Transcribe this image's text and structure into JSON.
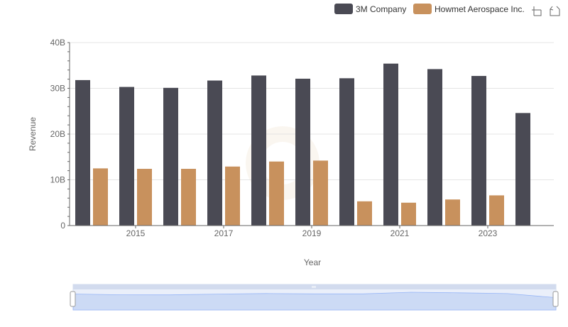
{
  "legend": {
    "items": [
      {
        "name": "3M Company",
        "color": "#4a4a54"
      },
      {
        "name": "Howmet Aerospace Inc.",
        "color": "#c8915d"
      }
    ]
  },
  "toolbar": {
    "icons": [
      "zoom-area-icon",
      "restore-icon"
    ]
  },
  "chart_data": {
    "type": "bar",
    "xlabel": "Year",
    "ylabel": "Revenue",
    "ylim": [
      0,
      40000000000
    ],
    "yticks": [
      {
        "value": 0,
        "label": "0"
      },
      {
        "value": 10000000000,
        "label": "10B"
      },
      {
        "value": 20000000000,
        "label": "20B"
      },
      {
        "value": 30000000000,
        "label": "30B"
      },
      {
        "value": 40000000000,
        "label": "40B"
      }
    ],
    "categories": [
      "2014",
      "2015",
      "2016",
      "2017",
      "2018",
      "2019",
      "2020",
      "2021",
      "2022",
      "2023",
      "2024"
    ],
    "xtick_labels": [
      "2015",
      "2017",
      "2019",
      "2021",
      "2023"
    ],
    "grid": true,
    "legend_position": "top-right",
    "series": [
      {
        "name": "3M Company",
        "color": "#4a4a54",
        "values": [
          31800000000,
          30300000000,
          30100000000,
          31700000000,
          32800000000,
          32100000000,
          32200000000,
          35400000000,
          34200000000,
          32700000000,
          24600000000
        ]
      },
      {
        "name": "Howmet Aerospace Inc.",
        "color": "#c8915d",
        "values": [
          12500000000,
          12400000000,
          12400000000,
          12900000000,
          14000000000,
          14200000000,
          5300000000,
          5000000000,
          5700000000,
          6600000000,
          null
        ]
      }
    ]
  }
}
